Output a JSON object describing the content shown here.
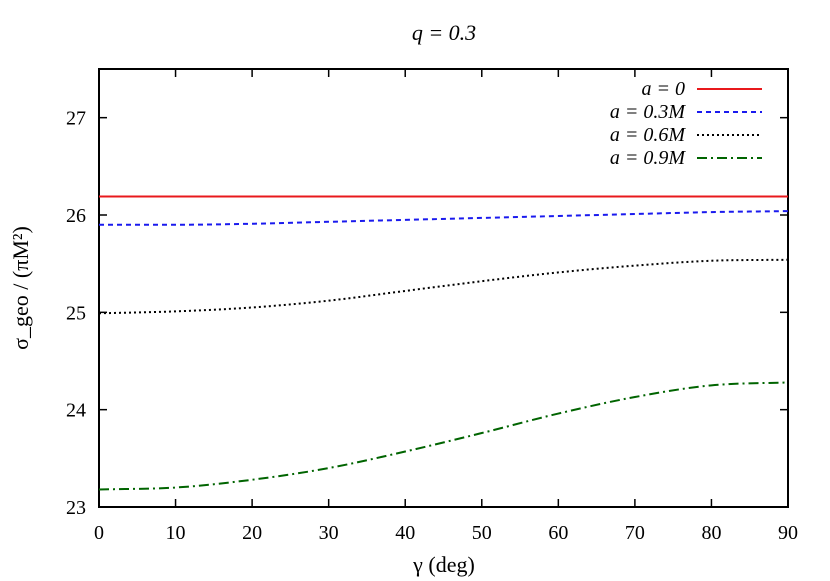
{
  "chart_data": {
    "type": "line",
    "title": "q = 0.3",
    "xlabel": "γ (deg)",
    "ylabel": "σ_geo / (πM²)",
    "xlim": [
      0,
      90
    ],
    "ylim": [
      23,
      27.5
    ],
    "x_ticks": [
      0,
      10,
      20,
      30,
      40,
      50,
      60,
      70,
      80,
      90
    ],
    "y_ticks": [
      23,
      24,
      25,
      26,
      27
    ],
    "grid": false,
    "legend_position": "top-right",
    "series": [
      {
        "name": "a = 0",
        "color": "#e8191c",
        "dash": "solid",
        "x": [
          0,
          10,
          20,
          30,
          40,
          50,
          60,
          70,
          80,
          90
        ],
        "values": [
          26.19,
          26.19,
          26.19,
          26.19,
          26.19,
          26.19,
          26.19,
          26.19,
          26.19,
          26.19
        ]
      },
      {
        "name": "a = 0.3M",
        "color": "#1a1aee",
        "dash": "dashed",
        "x": [
          0,
          10,
          20,
          30,
          40,
          50,
          60,
          70,
          80,
          90
        ],
        "values": [
          25.9,
          25.9,
          25.91,
          25.93,
          25.95,
          25.97,
          25.99,
          26.01,
          26.03,
          26.04
        ]
      },
      {
        "name": "a = 0.6M",
        "color": "#000000",
        "dash": "dotted",
        "x": [
          0,
          10,
          20,
          30,
          40,
          50,
          60,
          70,
          80,
          90
        ],
        "values": [
          24.99,
          25.01,
          25.05,
          25.12,
          25.22,
          25.32,
          25.41,
          25.48,
          25.53,
          25.54
        ]
      },
      {
        "name": "a = 0.9M",
        "color": "#006400",
        "dash": "dashdot",
        "x": [
          0,
          10,
          20,
          30,
          40,
          50,
          60,
          70,
          80,
          90
        ],
        "values": [
          23.18,
          23.2,
          23.28,
          23.4,
          23.57,
          23.76,
          23.96,
          24.13,
          24.25,
          24.28
        ]
      }
    ]
  }
}
